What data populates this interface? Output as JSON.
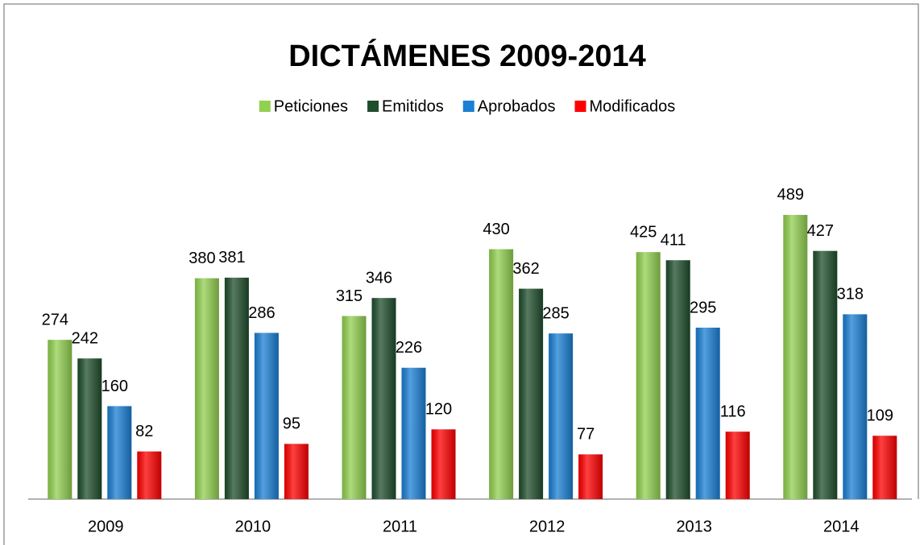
{
  "chart_data": {
    "type": "bar",
    "title": "DICTÁMENES 2009-2014",
    "categories": [
      "2009",
      "2010",
      "2011",
      "2012",
      "2013",
      "2014"
    ],
    "series": [
      {
        "name": "Peticiones",
        "color": "#92d050",
        "values": [
          274,
          380,
          315,
          430,
          425,
          489
        ]
      },
      {
        "name": "Emitidos",
        "color": "#1f4e2c",
        "values": [
          242,
          381,
          346,
          362,
          411,
          427
        ]
      },
      {
        "name": "Aprobados",
        "color": "#1b7fd4",
        "values": [
          160,
          286,
          226,
          285,
          295,
          318
        ]
      },
      {
        "name": "Modificados",
        "color": "#ff0000",
        "values": [
          82,
          95,
          120,
          77,
          116,
          109
        ]
      }
    ],
    "legend": "top"
  }
}
